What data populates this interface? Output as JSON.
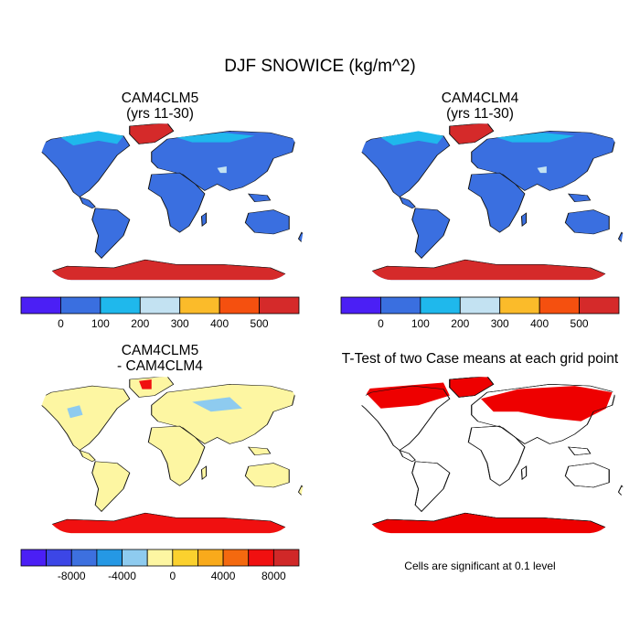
{
  "figure": {
    "title": "DJF SNOWICE (kg/m^2)"
  },
  "panels": [
    {
      "id": "cam4clm5",
      "title_line1": "CAM4CLM5",
      "title_line2": "(yrs 11-30)"
    },
    {
      "id": "cam4clm4",
      "title_line1": "CAM4CLM4",
      "title_line2": "(yrs 11-30)"
    },
    {
      "id": "difference",
      "title_line1": "CAM4CLM5",
      "title_line2": "- CAM4CLM4"
    },
    {
      "id": "ttest",
      "title_line1": "T-Test of two Case means at each grid point",
      "title_line2": ""
    }
  ],
  "colorbars": {
    "absolute": {
      "colors": [
        "#4b1ff5",
        "#3a6fe0",
        "#1fb8ec",
        "#c3e2f2",
        "#fbbb2a",
        "#f5500f",
        "#d52a2a"
      ],
      "labels": [
        "0",
        "100",
        "200",
        "300",
        "400",
        "500"
      ]
    },
    "difference": {
      "colors": [
        "#4b1ff5",
        "#3c46e6",
        "#3d70df",
        "#2598e4",
        "#8ecbef",
        "#fdf6a2",
        "#fbd12e",
        "#f9aa1b",
        "#f4690f",
        "#f01010",
        "#d02828"
      ],
      "labels": [
        "-8000",
        "-4000",
        "0",
        "4000",
        "8000"
      ]
    }
  },
  "ttest_note": "Cells are significant at 0.1 level",
  "colors": {
    "land_abs": "#3a6fe0",
    "snow_light": "#1fb8ec",
    "snow_pale": "#c3e2f2",
    "ice_red": "#d52a2a",
    "diff_land": "#fdf6a2",
    "diff_neg": "#8ecbef",
    "diff_pos": "#f01010",
    "sig_red": "#ee0000"
  }
}
